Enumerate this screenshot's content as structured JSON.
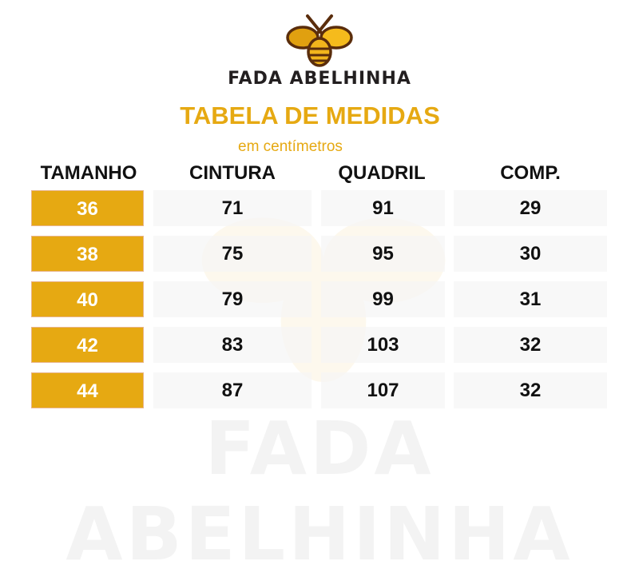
{
  "brand": "FADA ABELHINHA",
  "title": "TABELA DE MEDIDAS",
  "subtitle": "em centímetros",
  "headers": [
    "TAMANHO",
    "CINTURA",
    "QUADRIL",
    "COMP."
  ],
  "rows": [
    [
      "36",
      "71",
      "91",
      "29"
    ],
    [
      "38",
      "75",
      "95",
      "30"
    ],
    [
      "40",
      "79",
      "99",
      "31"
    ],
    [
      "42",
      "83",
      "103",
      "32"
    ],
    [
      "44",
      "87",
      "107",
      "32"
    ]
  ],
  "watermark": "FADA ABELHINHA",
  "colors": {
    "accent": "#e6a912",
    "text": "#111111",
    "logo_brown": "#5a2d0c"
  }
}
